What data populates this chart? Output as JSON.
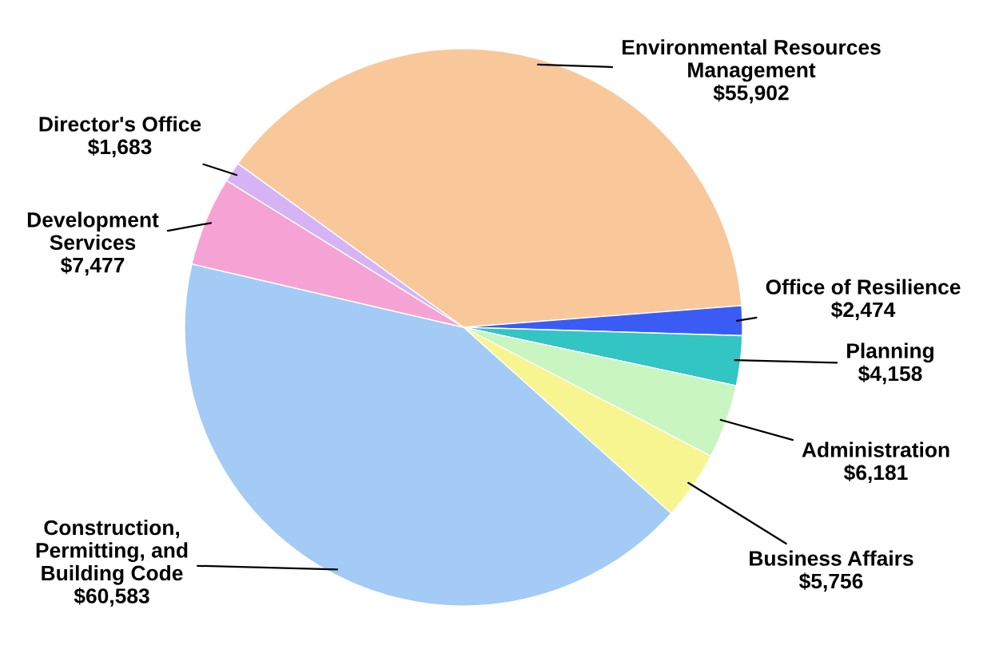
{
  "chart_data": {
    "type": "pie",
    "categories": [
      "Environmental Resources\nManagement",
      "Office of Resilience",
      "Planning",
      "Administration",
      "Business Affairs",
      "Construction,\nPermitting, and\nBuilding Code",
      "Development\nServices",
      "Director's Office"
    ],
    "values": [
      55902,
      2474,
      4158,
      6181,
      5756,
      60583,
      7477,
      1683
    ],
    "value_labels": [
      "$55,902",
      "$2,474",
      "$4,158",
      "$6,181",
      "$5,756",
      "$60,583",
      "$7,477",
      "$1,683"
    ],
    "colors": [
      "#f8c89a",
      "#3a5cf5",
      "#33c4c4",
      "#c8f5c0",
      "#f7f590",
      "#a3cbf5",
      "#f5a3d5",
      "#d6b3f5"
    ]
  }
}
